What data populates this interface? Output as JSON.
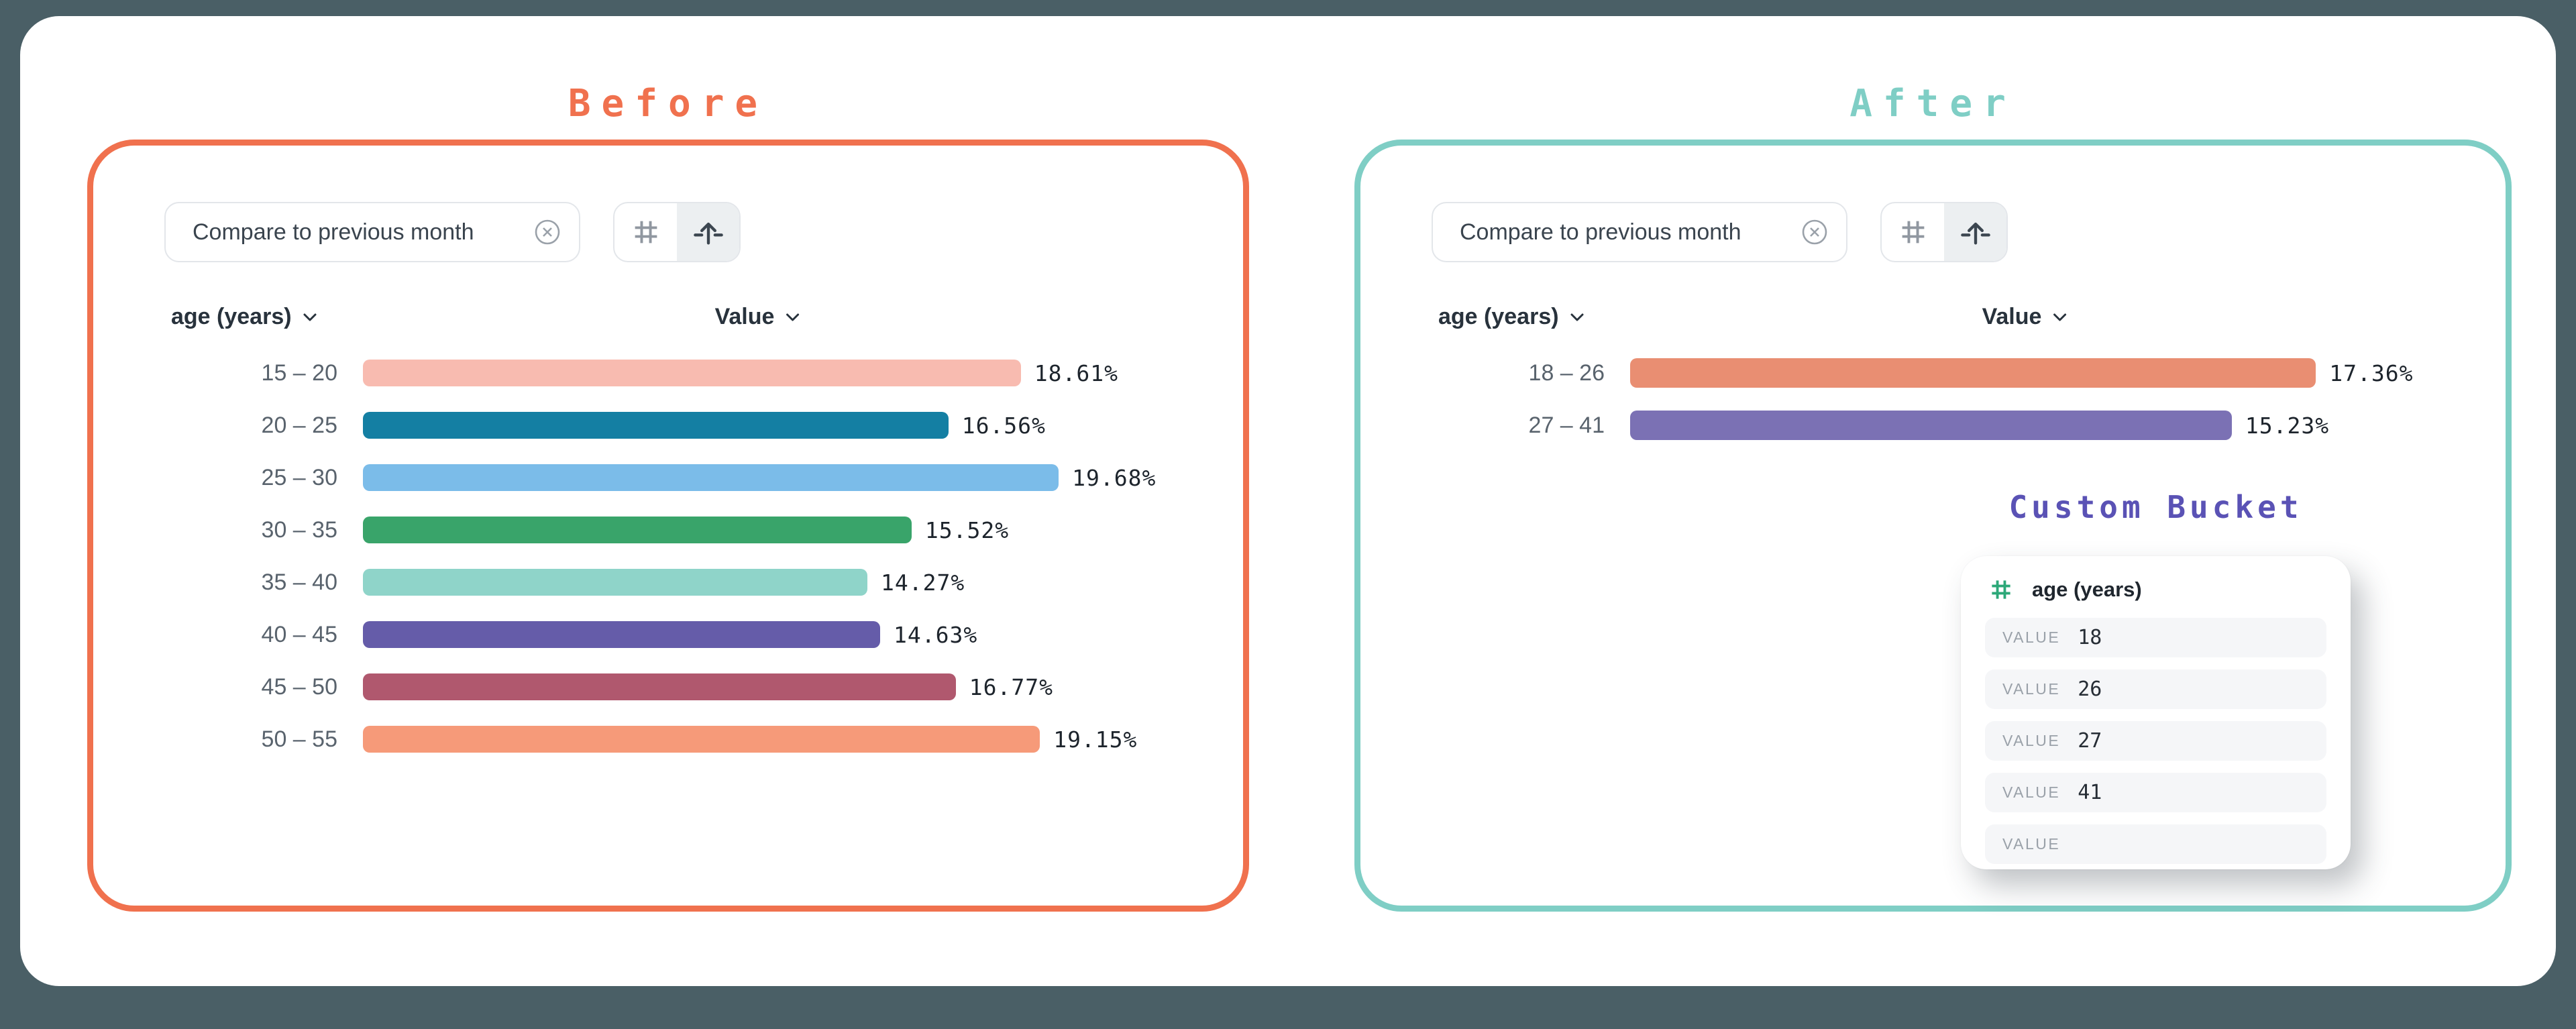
{
  "colors": {
    "background": "#4A5F66",
    "canvas": "#FFFFFF",
    "before_accent": "#F0714E",
    "after_accent": "#7FCEC5",
    "custom_bucket_accent": "#5A52B5",
    "hash_green": "#2CA878",
    "chip_border": "#E3E6EA",
    "segmented_selected_bg": "#ECEFF1",
    "icon_gray": "#9097A0",
    "icon_dark": "#3C4650",
    "text_dark": "#28323C",
    "text_muted": "#59636D",
    "value_row_bg": "#F5F6F8"
  },
  "before": {
    "title": "Before",
    "accent": "#F0714E",
    "chip_label": "Compare to previous month",
    "dimension_label": "age (years)",
    "value_label": "Value"
  },
  "after": {
    "title": "After",
    "accent": "#7FCEC5",
    "chip_label": "Compare to previous month",
    "dimension_label": "age (years)",
    "value_label": "Value",
    "custom_bucket": {
      "title": "Custom Bucket",
      "accent": "#5A52B5",
      "field_label": "age (years)",
      "value_field_label": "VALUE",
      "values": [
        "18",
        "26",
        "27",
        "41",
        ""
      ]
    }
  },
  "chart_data": [
    {
      "id": "before",
      "type": "bar",
      "orientation": "horizontal",
      "title": "Before",
      "xlabel": "Value",
      "ylabel": "age (years)",
      "categories": [
        "15 – 20",
        "20 – 25",
        "25 – 30",
        "30 – 35",
        "35 – 40",
        "40 – 45",
        "45 – 50",
        "50 – 55"
      ],
      "values": [
        18.61,
        16.56,
        19.68,
        15.52,
        14.27,
        14.63,
        16.77,
        19.15
      ],
      "labels": [
        "18.61%",
        "16.56%",
        "19.68%",
        "15.52%",
        "14.27%",
        "14.63%",
        "16.77%",
        "19.15%"
      ],
      "colors": [
        "#F8BBB0",
        "#147FA3",
        "#7BBCE9",
        "#39A46A",
        "#8FD4C9",
        "#655CA9",
        "#B0586E",
        "#F69A79"
      ],
      "xlim": [
        0,
        20
      ],
      "grid": false,
      "legend": false
    },
    {
      "id": "after",
      "type": "bar",
      "orientation": "horizontal",
      "title": "After",
      "xlabel": "Value",
      "ylabel": "age (years)",
      "categories": [
        "18 – 26",
        "27 – 41"
      ],
      "values": [
        17.36,
        15.23
      ],
      "labels": [
        "17.36%",
        "15.23%"
      ],
      "colors": [
        "#E98E72",
        "#7B71B4"
      ],
      "xlim": [
        0,
        18
      ],
      "grid": false,
      "legend": false
    }
  ]
}
